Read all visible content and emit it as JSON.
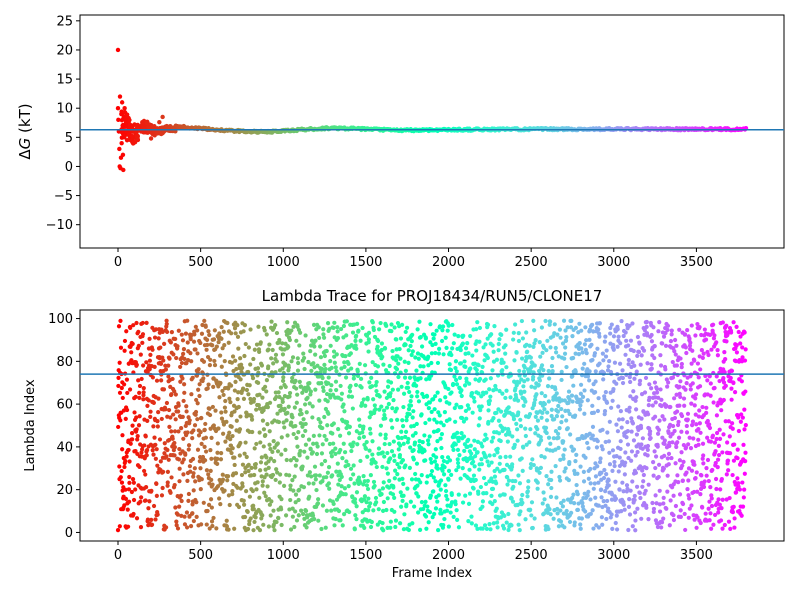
{
  "chart_data": [
    {
      "type": "scatter",
      "title": "",
      "xlabel": "",
      "ylabel_symbol": "ΔG",
      "ylabel_unit": "(kT)",
      "xlim": [
        -230,
        4030
      ],
      "ylim": [
        -14,
        26
      ],
      "xticks": [
        0,
        500,
        1000,
        1500,
        2000,
        2500,
        3000,
        3500
      ],
      "yticks": [
        -10,
        -5,
        0,
        5,
        10,
        15,
        20,
        25
      ],
      "hline": 6.3,
      "hline_color": "#1f77b4",
      "colormap": "rainbow",
      "points_initial": [
        [
          0,
          20
        ],
        [
          0,
          10
        ],
        [
          2,
          8
        ],
        [
          5,
          6
        ],
        [
          8,
          3
        ],
        [
          10,
          0
        ],
        [
          12,
          12
        ],
        [
          15,
          -0.3
        ],
        [
          18,
          1.5
        ],
        [
          20,
          9
        ],
        [
          22,
          4
        ],
        [
          25,
          11
        ],
        [
          28,
          7
        ],
        [
          30,
          2
        ],
        [
          32,
          -0.6
        ],
        [
          35,
          8.5
        ],
        [
          38,
          5
        ],
        [
          40,
          10
        ],
        [
          45,
          6
        ],
        [
          50,
          7.5
        ],
        [
          55,
          4.5
        ],
        [
          60,
          8
        ],
        [
          65,
          6.5
        ],
        [
          70,
          5.5
        ],
        [
          80,
          7
        ],
        [
          90,
          5
        ],
        [
          100,
          7.2
        ],
        [
          110,
          5.6
        ],
        [
          120,
          6.8
        ],
        [
          140,
          6.0
        ],
        [
          160,
          6.6
        ],
        [
          180,
          5.8
        ],
        [
          200,
          4.8
        ],
        [
          220,
          6.9
        ],
        [
          250,
          7.6
        ],
        [
          270,
          8.5
        ],
        [
          300,
          6.3
        ],
        [
          330,
          6.5
        ]
      ],
      "trend": [
        [
          350,
          6.9
        ],
        [
          500,
          6.5
        ],
        [
          700,
          6.1
        ],
        [
          900,
          5.9
        ],
        [
          1100,
          6.3
        ],
        [
          1300,
          6.6
        ],
        [
          1500,
          6.4
        ],
        [
          1700,
          6.2
        ],
        [
          2000,
          6.3
        ],
        [
          2500,
          6.4
        ],
        [
          3000,
          6.4
        ],
        [
          3500,
          6.4
        ],
        [
          3800,
          6.4
        ]
      ]
    },
    {
      "type": "scatter",
      "title": "Lambda Trace for PROJ18434/RUN5/CLONE17",
      "xlabel": "Frame Index",
      "ylabel": "Lambda Index",
      "xlim": [
        -230,
        4030
      ],
      "ylim": [
        -4,
        104
      ],
      "xticks": [
        0,
        500,
        1000,
        1500,
        2000,
        2500,
        3000,
        3500
      ],
      "yticks": [
        0,
        20,
        40,
        60,
        80,
        100
      ],
      "hline": 74,
      "hline_color": "#1f77b4",
      "colormap": "rainbow",
      "n_points": 3800,
      "value_range": [
        1,
        99
      ]
    }
  ]
}
